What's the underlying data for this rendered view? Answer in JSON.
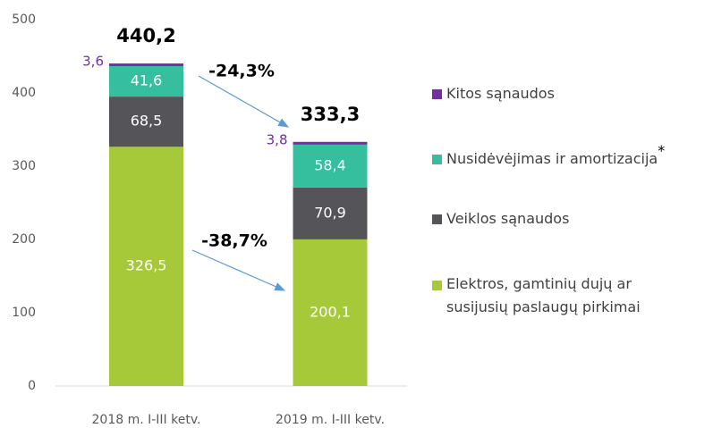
{
  "chart_data": {
    "type": "stacked_bar",
    "categories": [
      "2018 m. I-III ketv.",
      "2019 m. I-III ketv."
    ],
    "series": [
      {
        "name": "Elektros, gamtinių dujų ar susijusių paslaugų pirkimai",
        "color": "#a6c93a",
        "values": [
          326.5,
          200.1
        ],
        "value_labels": [
          "326,5",
          "200,1"
        ]
      },
      {
        "name": "Veiklos sąnaudos",
        "color": "#555559",
        "values": [
          68.5,
          70.9
        ],
        "value_labels": [
          "68,5",
          "70,9"
        ]
      },
      {
        "name": "Nusidėvėjimas ir amortizacija",
        "color": "#36bf9f",
        "values": [
          41.6,
          58.4
        ],
        "value_labels": [
          "41,6",
          "58,4"
        ]
      },
      {
        "name": "Kitos sąnaudos",
        "color": "#7030a0",
        "values": [
          3.6,
          3.8
        ],
        "value_labels": [
          "3,6",
          "3,8"
        ]
      }
    ],
    "totals": [
      "440,2",
      "333,3"
    ],
    "annotations": [
      "-24,3%",
      "-38,7%",
      "*"
    ],
    "ylim": [
      0,
      500
    ],
    "yticks": [
      0,
      100,
      200,
      300,
      400,
      500
    ]
  }
}
